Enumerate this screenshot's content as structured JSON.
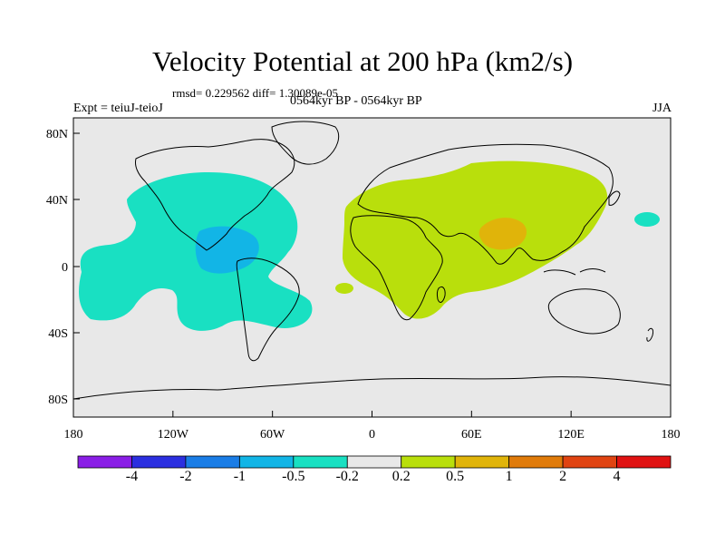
{
  "title": "Velocity Potential at 200 hPa (km2/s)",
  "stats": "rmsd= 0.229562 diff= 1.30089e-05",
  "expt": "Expt = teiuJ-teioJ",
  "period": "0564kyr BP - 0564kyr BP",
  "season": "JJA",
  "x_ticks": [
    "180",
    "120W",
    "60W",
    "0",
    "60E",
    "120E",
    "180"
  ],
  "y_ticks": [
    "80N",
    "40N",
    "0",
    "40S",
    "80S"
  ],
  "colorbar": {
    "labels": [
      "-4",
      "-2",
      "-1",
      "-0.5",
      "-0.2",
      "0.2",
      "0.5",
      "1",
      "2",
      "4"
    ],
    "colors": [
      "#8a1ee6",
      "#2b2fe0",
      "#1a7de6",
      "#12b5e6",
      "#19e0c2",
      "#e8e8e8",
      "#b9df0c",
      "#e0b40a",
      "#e07b0a",
      "#e04412",
      "#e01212"
    ]
  },
  "map_colors": {
    "background": "#e8e8e8",
    "neg_weak": "#19e0c2",
    "neg_mid": "#12b5e6",
    "pos_weak": "#b9df0c",
    "pos_mid": "#e0b40a"
  }
}
